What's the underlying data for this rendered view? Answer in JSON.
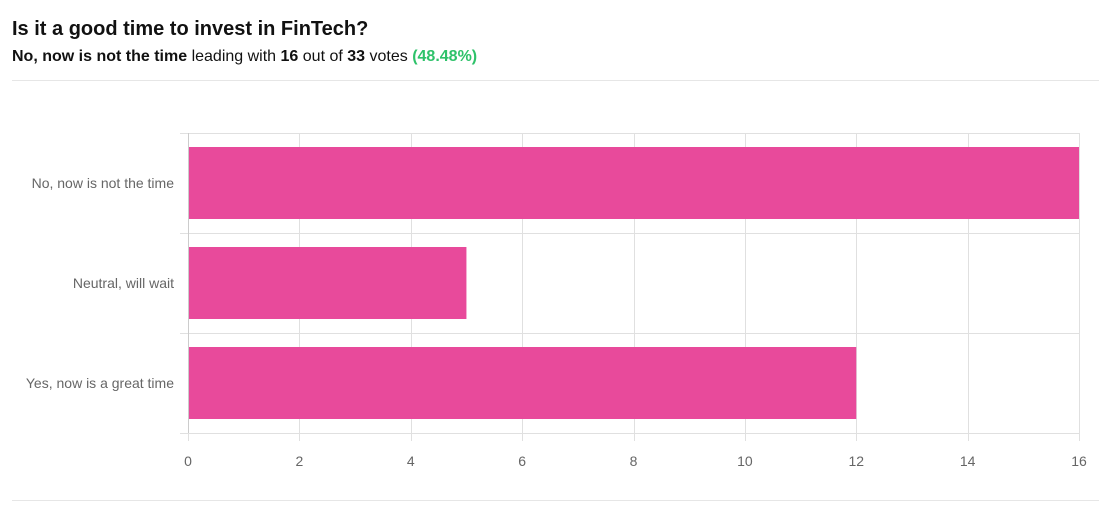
{
  "poll": {
    "title": "Is it a good time to invest in FinTech?",
    "leader_option": "No, now is not the time",
    "text_leading_with": "leading with",
    "leader_votes": "16",
    "text_out_of": "out of",
    "total_votes": "33",
    "text_votes": "votes",
    "leader_percent": "(48.48%)"
  },
  "colors": {
    "bar": "#e84a9b",
    "percent_text": "#2ec26a",
    "grid": "#e0e0e0"
  },
  "chart_data": {
    "type": "bar",
    "orientation": "horizontal",
    "title": "",
    "xlabel": "",
    "ylabel": "",
    "categories": [
      "No, now is not the time",
      "Neutral, will wait",
      "Yes, now is a great time"
    ],
    "values": [
      16,
      5,
      12
    ],
    "xlim": [
      0,
      16
    ],
    "xticks": [
      0,
      2,
      4,
      6,
      8,
      10,
      12,
      14,
      16
    ],
    "grid": true,
    "legend": "none"
  }
}
